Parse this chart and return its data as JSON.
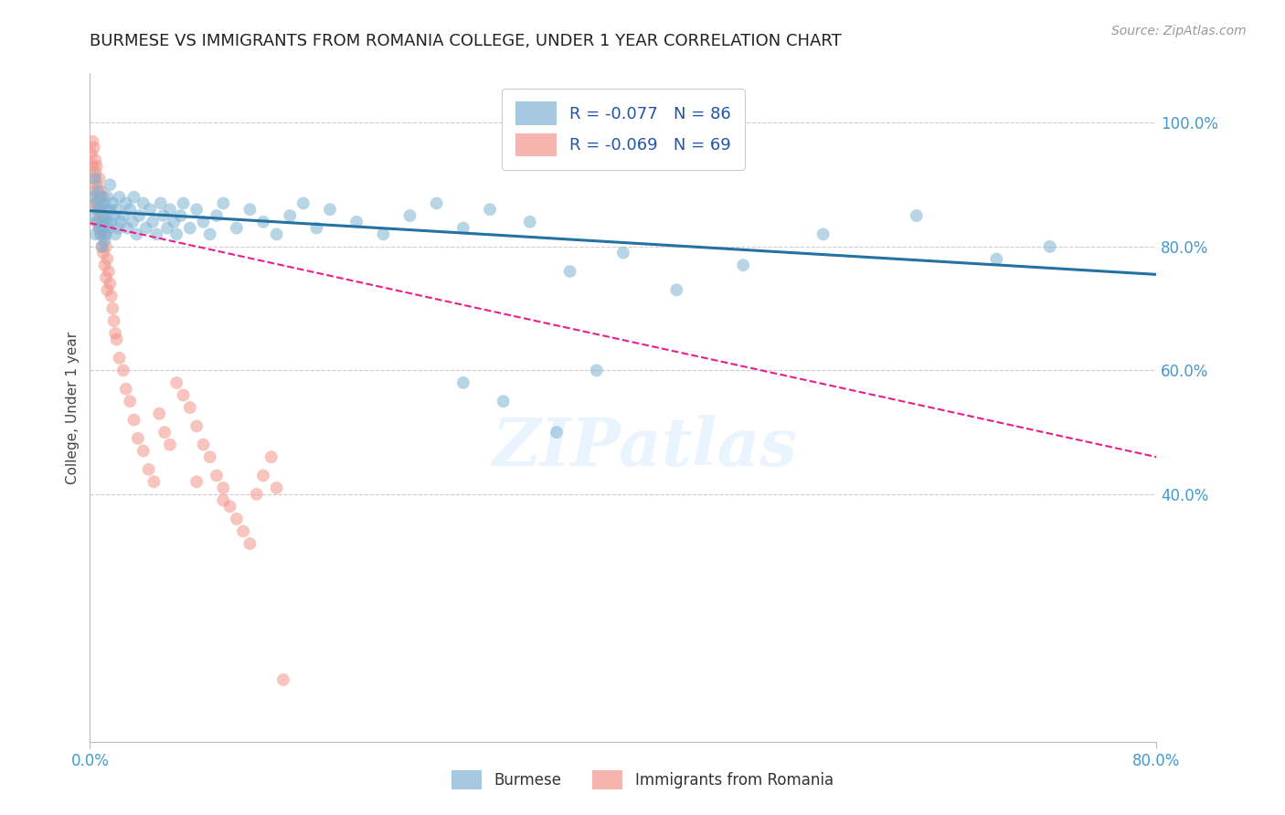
{
  "title": "BURMESE VS IMMIGRANTS FROM ROMANIA COLLEGE, UNDER 1 YEAR CORRELATION CHART",
  "source": "Source: ZipAtlas.com",
  "ylabel": "College, Under 1 year",
  "xlim": [
    0.0,
    0.8
  ],
  "ylim": [
    0.0,
    1.08
  ],
  "yticks_right": [
    0.4,
    0.6,
    0.8,
    1.0
  ],
  "yticklabels_right": [
    "40.0%",
    "60.0%",
    "80.0%",
    "100.0%"
  ],
  "blue_color": "#7FB3D3",
  "pink_color": "#F1948A",
  "blue_line_color": "#2471A3",
  "pink_line_color": "#E91E8C",
  "legend_blue_label": "R = -0.077   N = 86",
  "legend_pink_label": "R = -0.069   N = 69",
  "legend_label_blue": "Burmese",
  "legend_label_pink": "Immigrants from Romania",
  "watermark": "ZIPatlas",
  "blue_scatter_x": [
    0.002,
    0.003,
    0.004,
    0.004,
    0.005,
    0.005,
    0.006,
    0.007,
    0.007,
    0.008,
    0.008,
    0.009,
    0.009,
    0.01,
    0.01,
    0.011,
    0.011,
    0.012,
    0.012,
    0.013,
    0.013,
    0.014,
    0.015,
    0.015,
    0.016,
    0.017,
    0.018,
    0.019,
    0.02,
    0.021,
    0.022,
    0.023,
    0.025,
    0.027,
    0.028,
    0.03,
    0.032,
    0.033,
    0.035,
    0.037,
    0.04,
    0.042,
    0.045,
    0.047,
    0.05,
    0.053,
    0.055,
    0.058,
    0.06,
    0.063,
    0.065,
    0.068,
    0.07,
    0.075,
    0.08,
    0.085,
    0.09,
    0.095,
    0.1,
    0.11,
    0.12,
    0.13,
    0.14,
    0.15,
    0.16,
    0.17,
    0.18,
    0.2,
    0.22,
    0.24,
    0.26,
    0.28,
    0.3,
    0.33,
    0.36,
    0.4,
    0.44,
    0.49,
    0.55,
    0.62,
    0.68,
    0.72,
    0.35,
    0.28,
    0.38,
    0.31
  ],
  "blue_scatter_y": [
    0.88,
    0.85,
    0.82,
    0.91,
    0.87,
    0.84,
    0.89,
    0.83,
    0.86,
    0.82,
    0.88,
    0.84,
    0.8,
    0.87,
    0.83,
    0.85,
    0.81,
    0.86,
    0.82,
    0.84,
    0.88,
    0.83,
    0.86,
    0.9,
    0.84,
    0.87,
    0.85,
    0.82,
    0.86,
    0.83,
    0.88,
    0.84,
    0.85,
    0.87,
    0.83,
    0.86,
    0.84,
    0.88,
    0.82,
    0.85,
    0.87,
    0.83,
    0.86,
    0.84,
    0.82,
    0.87,
    0.85,
    0.83,
    0.86,
    0.84,
    0.82,
    0.85,
    0.87,
    0.83,
    0.86,
    0.84,
    0.82,
    0.85,
    0.87,
    0.83,
    0.86,
    0.84,
    0.82,
    0.85,
    0.87,
    0.83,
    0.86,
    0.84,
    0.82,
    0.85,
    0.87,
    0.83,
    0.86,
    0.84,
    0.76,
    0.79,
    0.73,
    0.77,
    0.82,
    0.85,
    0.78,
    0.8,
    0.5,
    0.58,
    0.6,
    0.55
  ],
  "pink_scatter_x": [
    0.001,
    0.002,
    0.002,
    0.003,
    0.003,
    0.003,
    0.004,
    0.004,
    0.004,
    0.005,
    0.005,
    0.005,
    0.006,
    0.006,
    0.007,
    0.007,
    0.007,
    0.008,
    0.008,
    0.008,
    0.009,
    0.009,
    0.01,
    0.01,
    0.01,
    0.011,
    0.011,
    0.012,
    0.012,
    0.013,
    0.013,
    0.014,
    0.015,
    0.016,
    0.017,
    0.018,
    0.019,
    0.02,
    0.022,
    0.025,
    0.027,
    0.03,
    0.033,
    0.036,
    0.04,
    0.044,
    0.048,
    0.052,
    0.056,
    0.06,
    0.065,
    0.07,
    0.075,
    0.08,
    0.085,
    0.09,
    0.095,
    0.1,
    0.105,
    0.11,
    0.115,
    0.12,
    0.125,
    0.13,
    0.136,
    0.14,
    0.1,
    0.08,
    0.145
  ],
  "pink_scatter_y": [
    0.95,
    0.97,
    0.93,
    0.91,
    0.96,
    0.89,
    0.94,
    0.92,
    0.87,
    0.9,
    0.86,
    0.93,
    0.88,
    0.84,
    0.87,
    0.91,
    0.83,
    0.85,
    0.89,
    0.82,
    0.86,
    0.8,
    0.84,
    0.88,
    0.79,
    0.82,
    0.77,
    0.8,
    0.75,
    0.78,
    0.73,
    0.76,
    0.74,
    0.72,
    0.7,
    0.68,
    0.66,
    0.65,
    0.62,
    0.6,
    0.57,
    0.55,
    0.52,
    0.49,
    0.47,
    0.44,
    0.42,
    0.53,
    0.5,
    0.48,
    0.58,
    0.56,
    0.54,
    0.51,
    0.48,
    0.46,
    0.43,
    0.41,
    0.38,
    0.36,
    0.34,
    0.32,
    0.4,
    0.43,
    0.46,
    0.41,
    0.39,
    0.42,
    0.1
  ],
  "blue_trendline_x": [
    0.0,
    0.8
  ],
  "blue_trendline_y": [
    0.858,
    0.755
  ],
  "pink_trendline_x": [
    0.0,
    0.8
  ],
  "pink_trendline_y": [
    0.838,
    0.46
  ],
  "background_color": "#ffffff",
  "grid_color": "#cccccc",
  "title_fontsize": 13,
  "tick_label_color": "#4499CC"
}
